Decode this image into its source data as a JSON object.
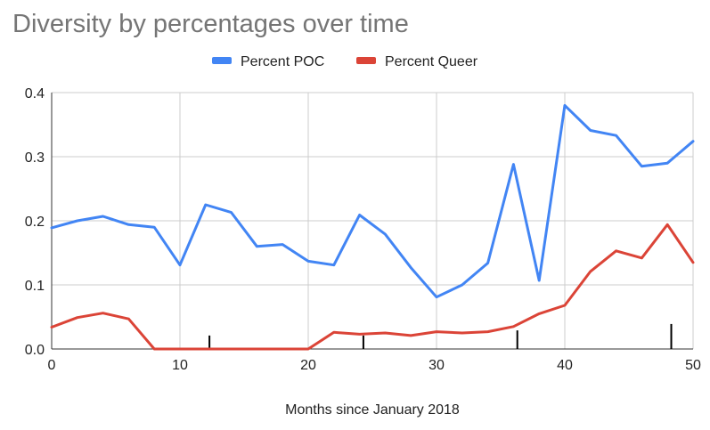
{
  "chart_data": {
    "type": "line",
    "title": "Diversity by percentages over time",
    "xlabel": "Months since January 2018",
    "ylabel": "",
    "xlim": [
      0,
      50
    ],
    "ylim": [
      0,
      0.4
    ],
    "x_ticks": [
      "0",
      "10",
      "20",
      "30",
      "40",
      "50"
    ],
    "y_ticks": [
      "0.0",
      "0.1",
      "0.2",
      "0.3",
      "0.4"
    ],
    "grid": true,
    "legend_position": "top",
    "x": [
      0,
      2,
      4,
      6,
      8,
      10,
      12,
      14,
      16,
      18,
      20,
      22,
      24,
      26,
      28,
      30,
      32,
      34,
      36,
      38,
      40,
      42,
      44,
      46,
      48,
      50
    ],
    "series": [
      {
        "name": "Percent POC",
        "color": "#4285f4",
        "values": [
          0.189,
          0.2,
          0.207,
          0.194,
          0.19,
          0.131,
          0.225,
          0.213,
          0.16,
          0.163,
          0.137,
          0.131,
          0.209,
          0.179,
          0.127,
          0.081,
          0.1,
          0.134,
          0.288,
          0.107,
          0.38,
          0.341,
          0.333,
          0.285,
          0.29,
          0.324
        ]
      },
      {
        "name": "Percent Queer",
        "color": "#db4437",
        "values": [
          0.034,
          0.049,
          0.056,
          0.047,
          0.0,
          0.0,
          0.0,
          0.0,
          0.0,
          0.0,
          0.0,
          0.026,
          0.023,
          0.025,
          0.021,
          0.027,
          0.025,
          0.027,
          0.035,
          0.055,
          0.068,
          0.121,
          0.153,
          0.142,
          0.194,
          0.135
        ]
      }
    ],
    "annotation_markers_x": [
      12.3,
      24.3,
      36.3,
      48.3
    ],
    "annotation_markers_height": [
      0.021,
      0.021,
      0.029,
      0.039
    ]
  }
}
